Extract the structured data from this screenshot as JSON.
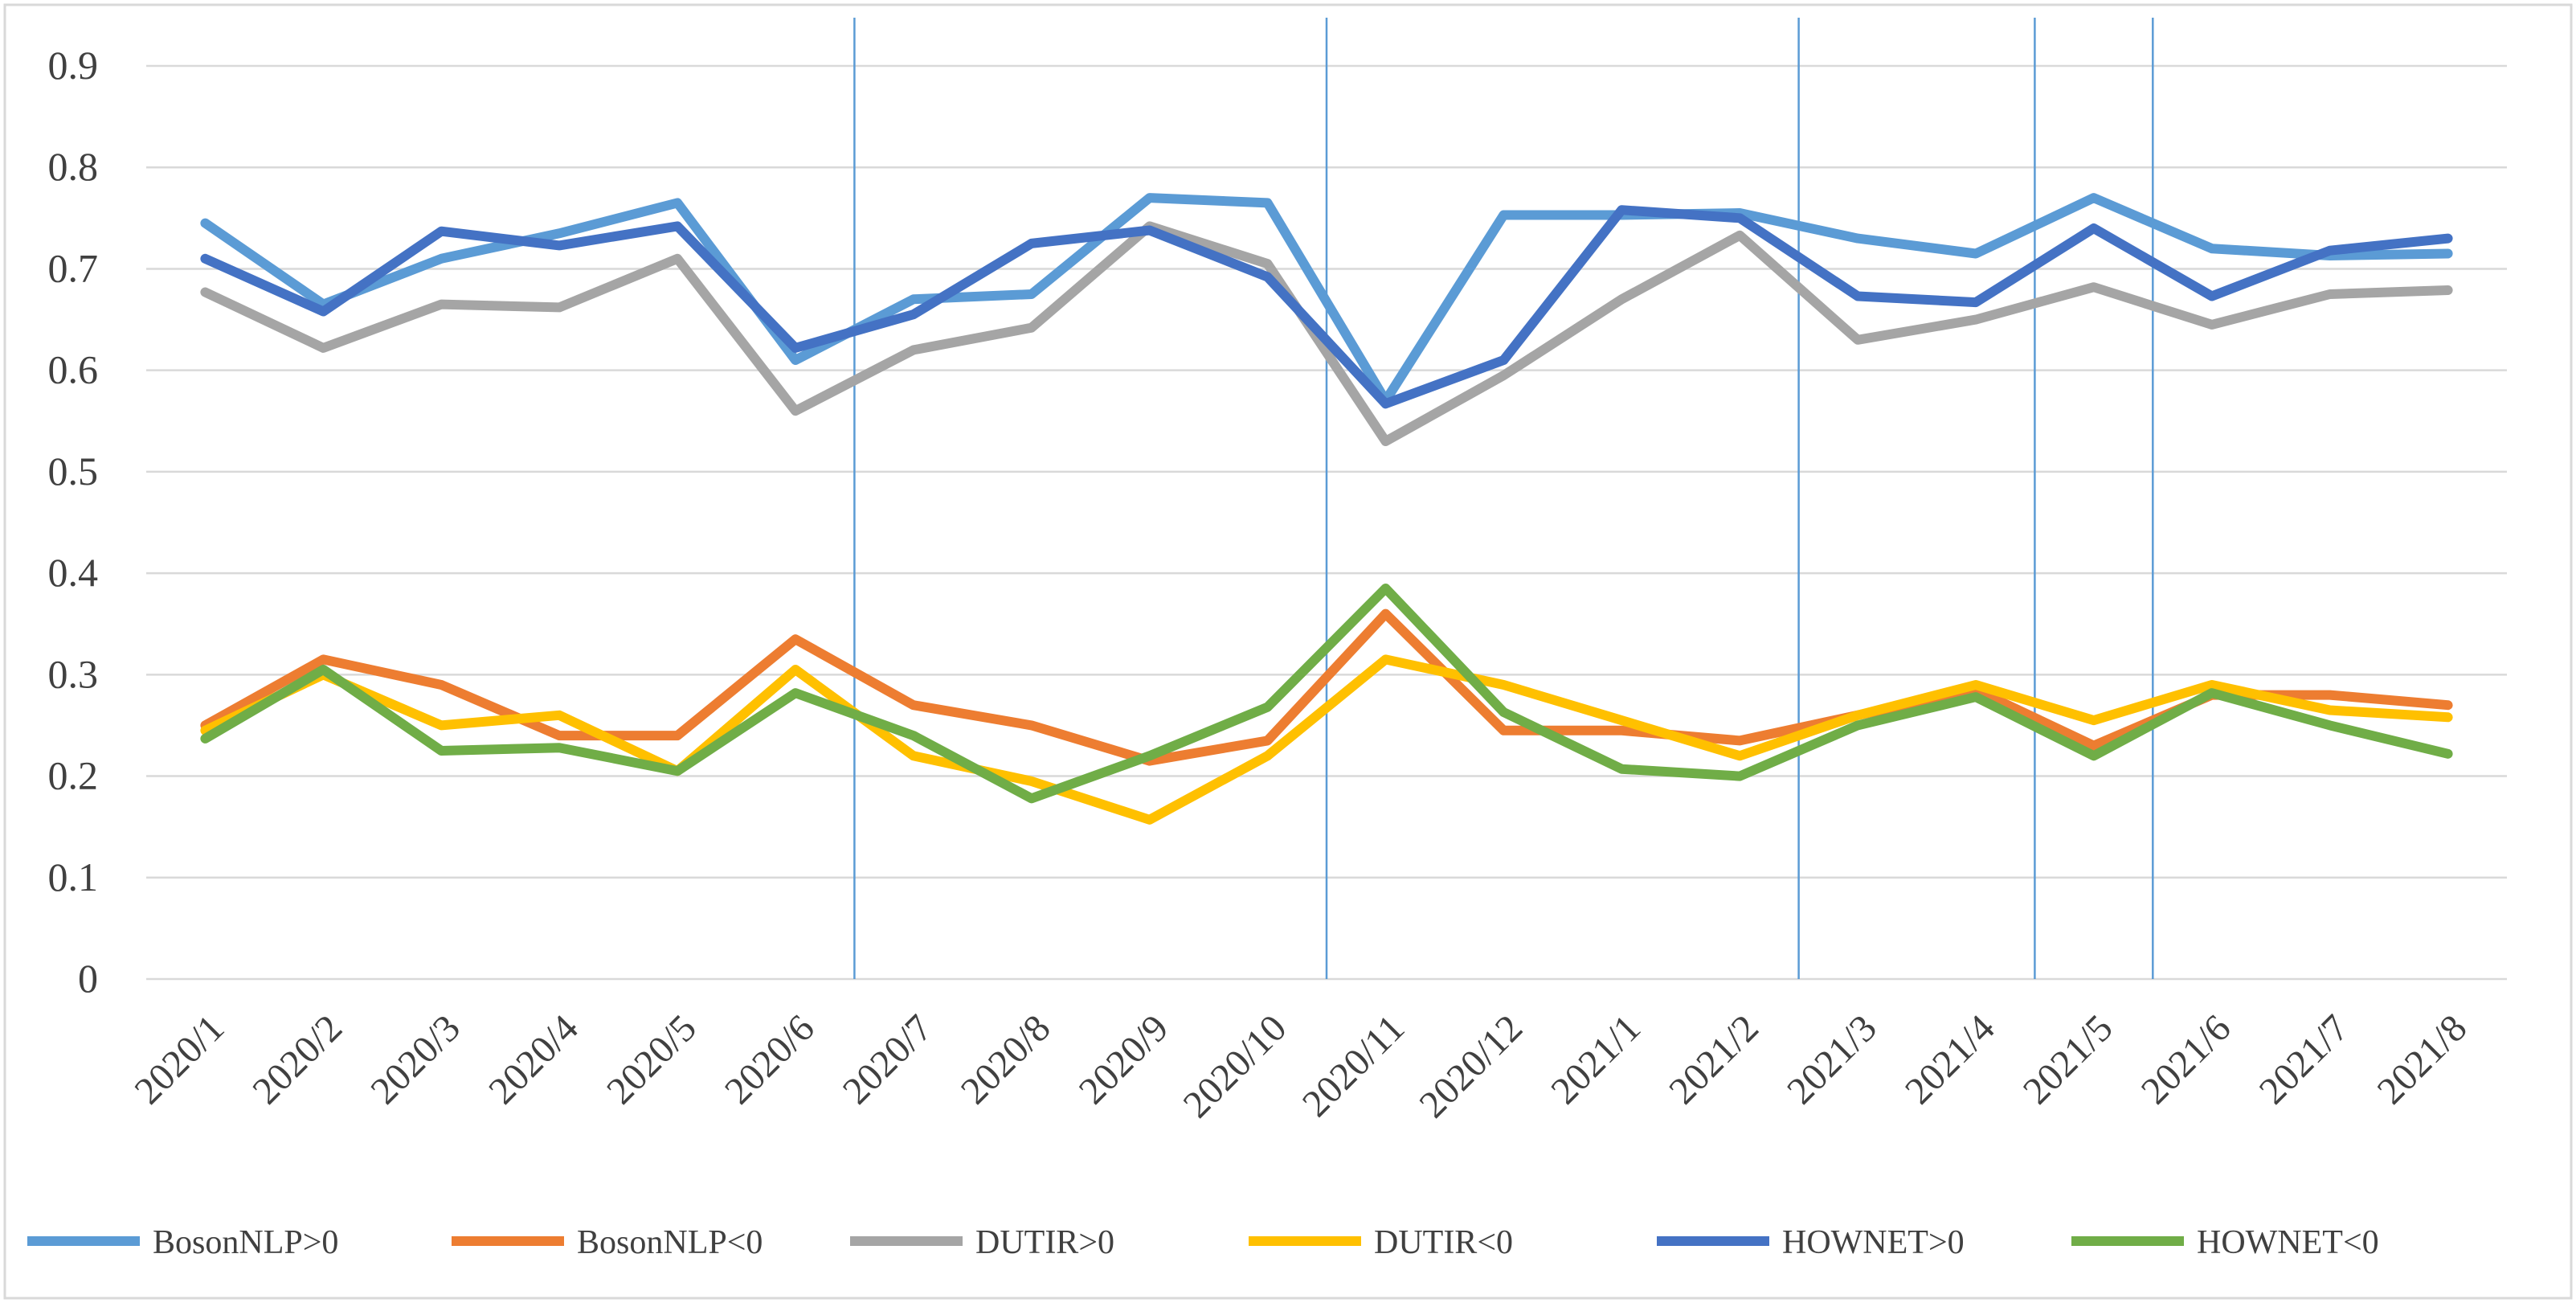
{
  "chart_data": {
    "type": "line",
    "title": "",
    "xlabel": "",
    "ylabel": "",
    "ylim": [
      0,
      0.9
    ],
    "yticks": [
      "0",
      "0.1",
      "0.2",
      "0.3",
      "0.4",
      "0.5",
      "0.6",
      "0.7",
      "0.8",
      "0.9"
    ],
    "grid": true,
    "legend_position": "bottom",
    "categories": [
      "2020/1",
      "2020/2",
      "2020/3",
      "2020/4",
      "2020/5",
      "2020/6",
      "2020/7",
      "2020/8",
      "2020/9",
      "2020/10",
      "2020/11",
      "2020/12",
      "2021/1",
      "2021/2",
      "2021/3",
      "2021/4",
      "2021/5",
      "2021/6",
      "2021/7",
      "2021/8"
    ],
    "reference_lines_after_category": [
      "2020/6",
      "2020/10",
      "2021/2",
      "2021/4",
      "2021/5"
    ],
    "series": [
      {
        "name": "BosonNLP>0",
        "color": "#5B9BD5",
        "values": [
          0.745,
          0.665,
          0.71,
          0.735,
          0.765,
          0.61,
          0.67,
          0.675,
          0.77,
          0.765,
          0.57,
          0.753,
          0.753,
          0.755,
          0.73,
          0.715,
          0.77,
          0.72,
          0.713,
          0.715
        ]
      },
      {
        "name": "BosonNLP<0",
        "color": "#ED7D31",
        "values": [
          0.25,
          0.315,
          0.29,
          0.24,
          0.24,
          0.335,
          0.27,
          0.25,
          0.215,
          0.235,
          0.36,
          0.245,
          0.245,
          0.235,
          0.26,
          0.285,
          0.23,
          0.28,
          0.28,
          0.27
        ]
      },
      {
        "name": "DUTIR>0",
        "color": "#A5A5A5",
        "values": [
          0.677,
          0.622,
          0.665,
          0.662,
          0.71,
          0.56,
          0.62,
          0.642,
          0.742,
          0.705,
          0.53,
          0.595,
          0.67,
          0.733,
          0.63,
          0.65,
          0.682,
          0.645,
          0.675,
          0.679
        ]
      },
      {
        "name": "DUTIR<0",
        "color": "#FFC000",
        "values": [
          0.245,
          0.3,
          0.25,
          0.26,
          0.205,
          0.305,
          0.22,
          0.195,
          0.157,
          0.22,
          0.315,
          0.29,
          0.255,
          0.22,
          0.26,
          0.29,
          0.255,
          0.29,
          0.265,
          0.258
        ]
      },
      {
        "name": "HOWNET>0",
        "color": "#4472C4",
        "values": [
          0.71,
          0.658,
          0.737,
          0.723,
          0.742,
          0.622,
          0.655,
          0.725,
          0.738,
          0.692,
          0.567,
          0.61,
          0.758,
          0.75,
          0.673,
          0.667,
          0.74,
          0.673,
          0.718,
          0.73
        ]
      },
      {
        "name": "HOWNET<0",
        "color": "#70AD47",
        "values": [
          0.237,
          0.305,
          0.225,
          0.228,
          0.205,
          0.282,
          0.24,
          0.178,
          0.22,
          0.268,
          0.385,
          0.263,
          0.207,
          0.2,
          0.25,
          0.278,
          0.22,
          0.282,
          0.25,
          0.222
        ]
      }
    ]
  }
}
